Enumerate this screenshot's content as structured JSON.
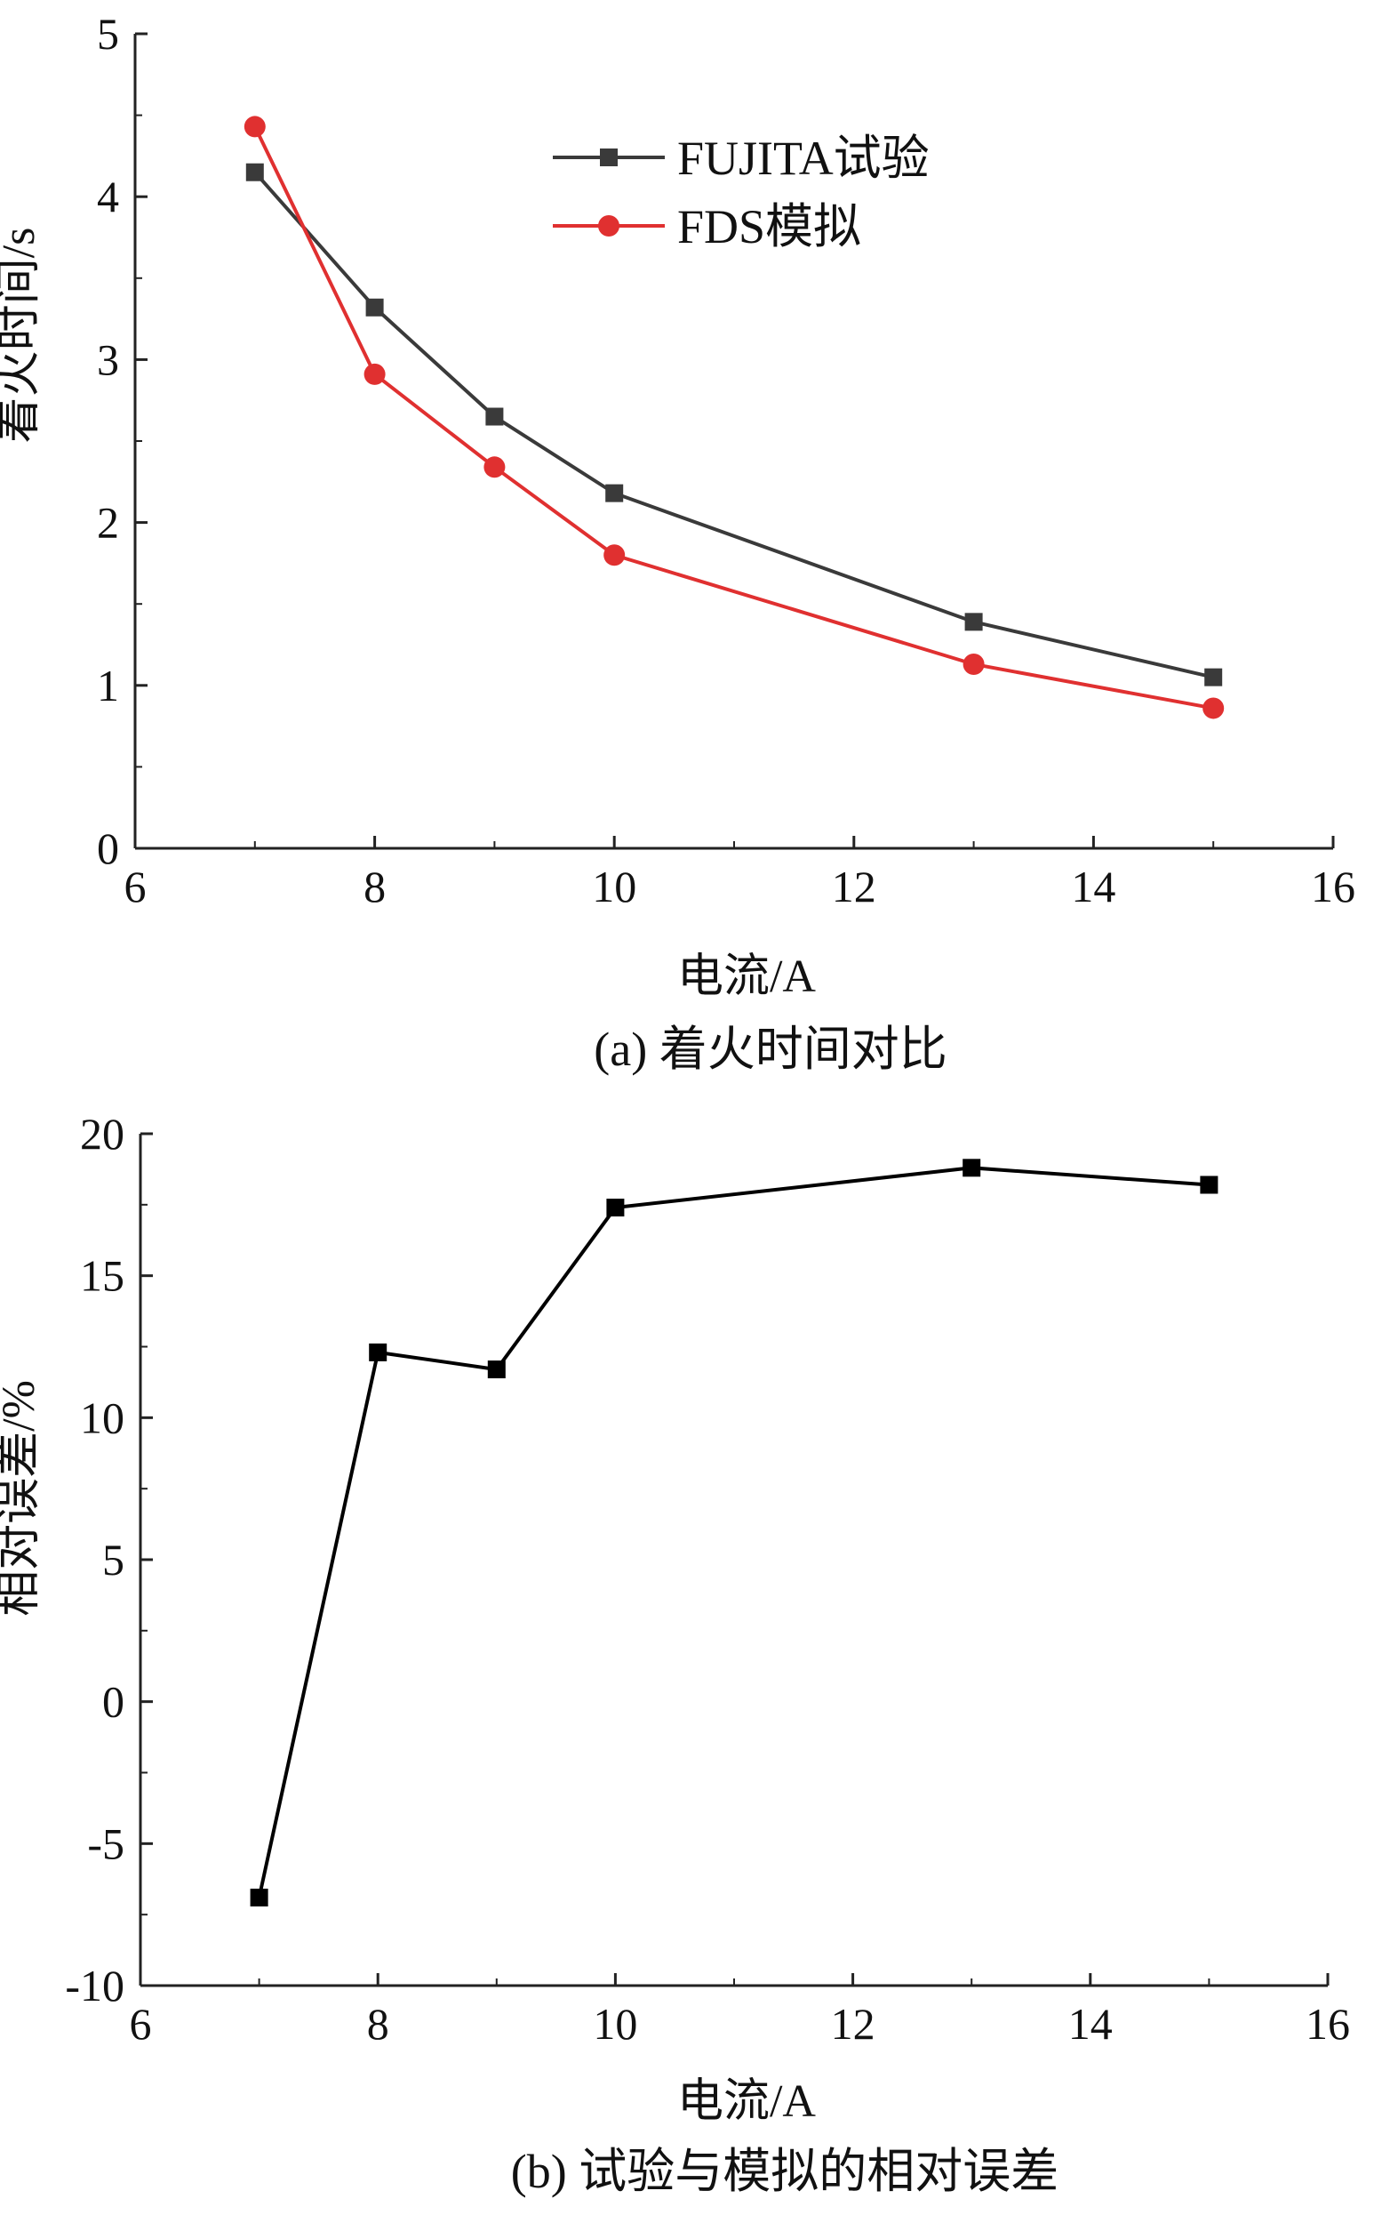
{
  "chart_data": [
    {
      "type": "line",
      "caption": "(a) 着火时间对比",
      "xlabel": "电流/A",
      "ylabel": "着火时间/s",
      "xlim": [
        6,
        16
      ],
      "ylim": [
        0,
        5
      ],
      "x_ticks": [
        "6",
        "8",
        "10",
        "12",
        "14",
        "16"
      ],
      "y_ticks": [
        "0",
        "1",
        "2",
        "3",
        "4",
        "5"
      ],
      "legend_position": "top-center",
      "x": [
        7,
        8,
        9,
        10,
        13,
        15
      ],
      "series": [
        {
          "name": "FUJITA试验",
          "marker": "square",
          "color": "#3a3a3a",
          "values": [
            4.15,
            3.32,
            2.65,
            2.18,
            1.39,
            1.05
          ]
        },
        {
          "name": "FDS模拟",
          "marker": "circle",
          "color": "#e03030",
          "values": [
            4.43,
            2.91,
            2.34,
            1.8,
            1.13,
            0.86
          ]
        }
      ]
    },
    {
      "type": "line",
      "caption": "(b) 试验与模拟的相对误差",
      "xlabel": "电流/A",
      "ylabel": "相对误差/%",
      "xlim": [
        6,
        16
      ],
      "ylim": [
        -10,
        20
      ],
      "x_ticks": [
        "6",
        "8",
        "10",
        "12",
        "14",
        "16"
      ],
      "y_ticks": [
        "-10",
        "-5",
        "0",
        "5",
        "10",
        "15",
        "20"
      ],
      "x": [
        7,
        8,
        9,
        10,
        13,
        15
      ],
      "series": [
        {
          "marker": "square",
          "color": "#000000",
          "values": [
            -6.9,
            12.3,
            11.7,
            17.4,
            18.8,
            18.2
          ]
        }
      ]
    }
  ]
}
